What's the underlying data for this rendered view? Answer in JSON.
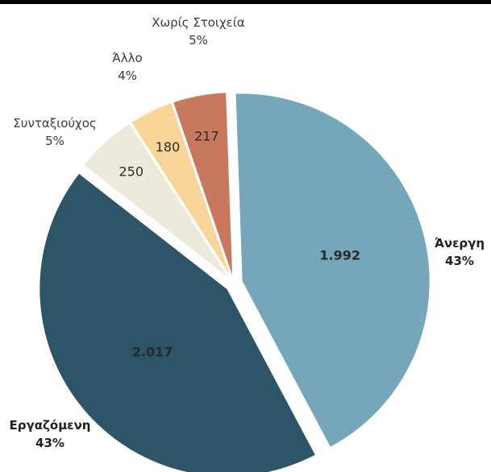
{
  "chart_data": {
    "type": "pie",
    "title": "",
    "categories": [
      "Άνεργη",
      "Εργαζόμενη",
      "Συνταξιούχος",
      "Άλλο",
      "Χωρίς Στοιχεία"
    ],
    "values": [
      1992,
      2017,
      250,
      180,
      217
    ],
    "value_labels": [
      "1.992",
      "2.017",
      "250",
      "180",
      "217"
    ],
    "percent_labels": [
      "43%",
      "43%",
      "5%",
      "4%",
      "5%"
    ],
    "colors": [
      "#75a7bb",
      "#2e5467",
      "#ecebdb",
      "#fad59a",
      "#c8785c"
    ],
    "exploded": true,
    "legend": "none"
  }
}
